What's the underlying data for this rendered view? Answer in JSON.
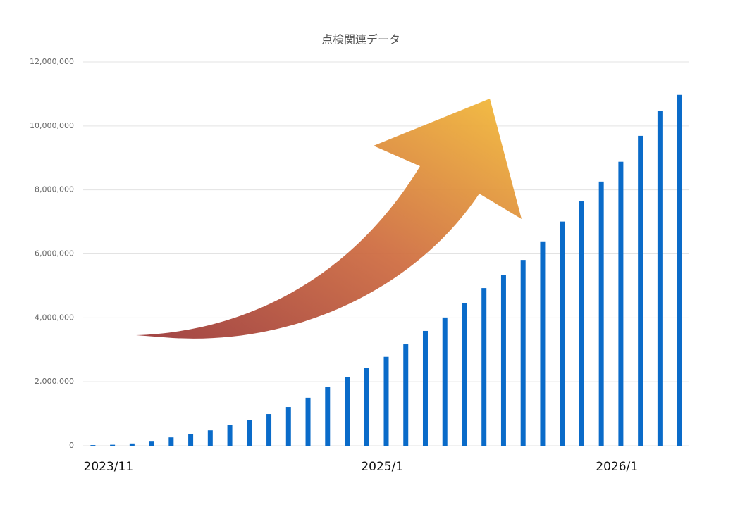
{
  "chart_data": {
    "type": "bar",
    "title": "点検関連データ",
    "categories": [
      "2023/11",
      null,
      null,
      null,
      null,
      null,
      null,
      null,
      null,
      null,
      null,
      null,
      null,
      null,
      "2025/1",
      null,
      null,
      null,
      null,
      null,
      null,
      null,
      null,
      null,
      null,
      null,
      "2026/1",
      null,
      null,
      null,
      null
    ],
    "values": [
      20000,
      30000,
      70000,
      150000,
      260000,
      370000,
      480000,
      640000,
      810000,
      990000,
      1210000,
      1500000,
      1830000,
      2140000,
      2440000,
      2780000,
      3170000,
      3590000,
      4010000,
      4450000,
      4930000,
      5330000,
      5810000,
      6390000,
      7010000,
      7640000,
      8260000,
      8880000,
      9690000,
      10460000,
      10970000
    ],
    "color": "#0a6bc9",
    "ylim": [
      0,
      12000000
    ],
    "yticks": [
      0,
      {
        "value": 2000000,
        "label": "2,000,000"
      },
      {
        "value": 4000000,
        "label": "4,000,000"
      },
      {
        "value": 6000000,
        "label": "6,000,000"
      },
      {
        "value": 8000000,
        "label": "8,000,000"
      },
      {
        "value": 10000000,
        "label": "10,000,000"
      },
      {
        "value": 12000000,
        "label": "12,000,000"
      }
    ],
    "grid": true
  }
}
